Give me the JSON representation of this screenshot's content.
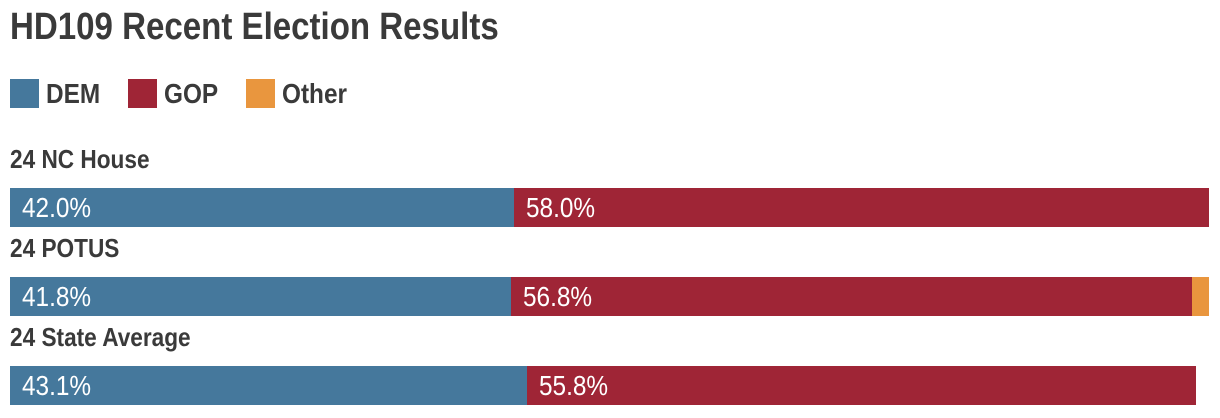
{
  "title": "HD109 Recent Election Results",
  "legend": [
    {
      "label": "DEM",
      "color": "#45789c"
    },
    {
      "label": "GOP",
      "color": "#9f2536"
    },
    {
      "label": "Other",
      "color": "#e9963e"
    }
  ],
  "chart_data": {
    "type": "bar",
    "orientation": "horizontal",
    "stacked": true,
    "unit": "percent",
    "xlim": [
      0,
      100
    ],
    "grid": false,
    "legend_position": "top",
    "categories": [
      "24 NC House",
      "24 POTUS",
      "24 State Average"
    ],
    "series": [
      {
        "name": "DEM",
        "color": "#45789c",
        "values": [
          42.0,
          41.8,
          43.1
        ]
      },
      {
        "name": "GOP",
        "color": "#9f2536",
        "values": [
          58.0,
          56.8,
          55.8
        ]
      },
      {
        "name": "Other",
        "color": "#e9963e",
        "values": [
          0,
          1.4,
          0
        ]
      }
    ],
    "value_labels": [
      [
        "42.0%",
        "58.0%",
        ""
      ],
      [
        "41.8%",
        "56.8%",
        ""
      ],
      [
        "43.1%",
        "55.8%",
        ""
      ]
    ]
  },
  "colors": {
    "background": "#ffffff",
    "heading_text": "#3a3a3a",
    "bar_label_text": "#ffffff"
  }
}
